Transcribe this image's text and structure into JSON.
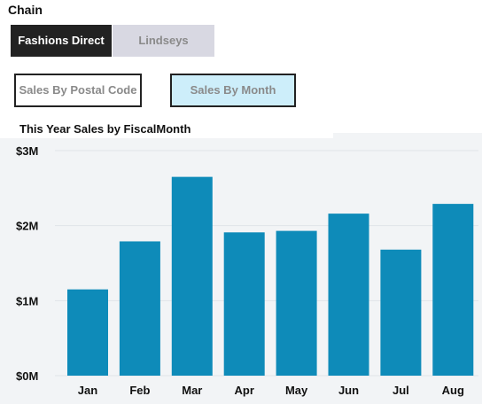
{
  "slicer": {
    "label": "Chain",
    "options": [
      {
        "label": "Fashions Direct",
        "selected": true
      },
      {
        "label": "Lindseys",
        "selected": false
      }
    ]
  },
  "nav_buttons": {
    "postal": "Sales By Postal Code",
    "month": "Sales By Month"
  },
  "colors": {
    "bar": "#0e8bb9",
    "gridline": "#e0e4e8",
    "plot_background": "#f2f4f6"
  },
  "chart_data": {
    "type": "bar",
    "title": "This Year Sales by FiscalMonth",
    "categories": [
      "Jan",
      "Feb",
      "Mar",
      "Apr",
      "May",
      "Jun",
      "Jul",
      "Aug"
    ],
    "values": [
      1.15,
      1.79,
      2.65,
      1.91,
      1.93,
      2.16,
      1.68,
      2.29
    ],
    "value_unit": "$M",
    "ylim": [
      0,
      3
    ],
    "yticks": [
      0,
      1,
      2,
      3
    ],
    "ytick_labels": [
      "$0M",
      "$1M",
      "$2M",
      "$3M"
    ],
    "grid": true,
    "legend": "none"
  }
}
